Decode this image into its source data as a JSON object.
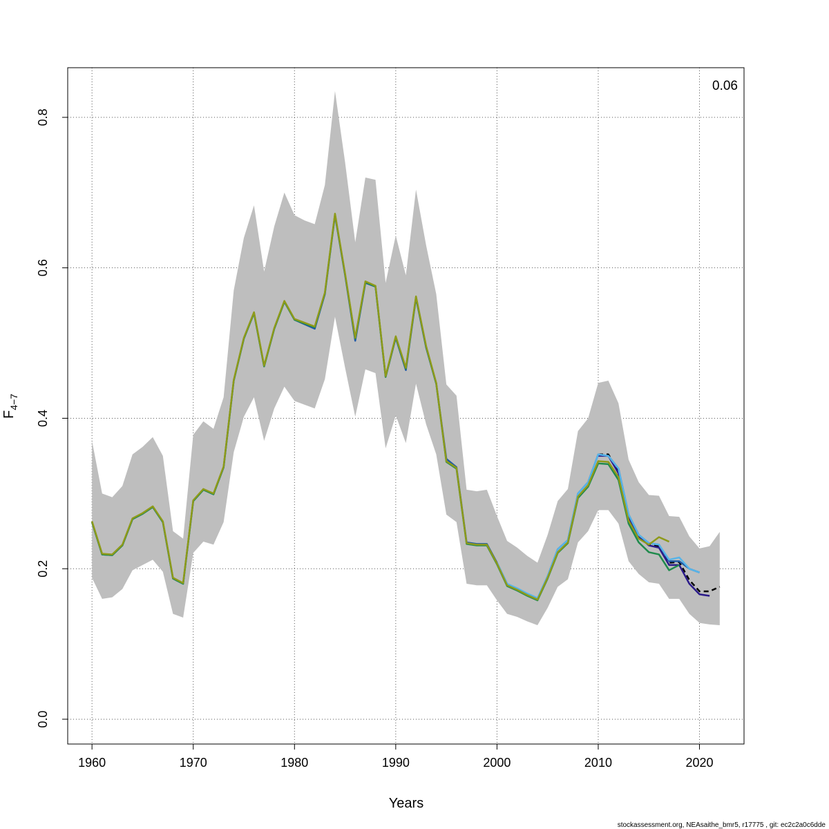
{
  "chart_data": {
    "type": "line",
    "xlabel": "Years",
    "ylabel_main": "F",
    "ylabel_sub": "4−7",
    "annotation": "0.06",
    "footer": "stockassessment.org, NEAsaithe_bmr5, r17775 , git: ec2c2a0c6dde",
    "xlim": [
      1957.6,
      2024.4
    ],
    "ylim": [
      -0.033,
      0.866
    ],
    "x_ticks": [
      1960,
      1970,
      1980,
      1990,
      2000,
      2010,
      2020
    ],
    "y_ticks": [
      0.0,
      0.2,
      0.4,
      0.6,
      0.8
    ],
    "y_tick_labels": [
      "0.0",
      "0.2",
      "0.4",
      "0.6",
      "0.8"
    ],
    "grid": true,
    "band_color": "#bebebe",
    "confidence_band": {
      "x": [
        1960,
        1961,
        1962,
        1963,
        1964,
        1965,
        1966,
        1967,
        1968,
        1969,
        1970,
        1971,
        1972,
        1973,
        1974,
        1975,
        1976,
        1977,
        1978,
        1979,
        1980,
        1981,
        1982,
        1983,
        1984,
        1985,
        1986,
        1987,
        1988,
        1989,
        1990,
        1991,
        1992,
        1993,
        1994,
        1995,
        1996,
        1997,
        1998,
        1999,
        2000,
        2001,
        2002,
        2003,
        2004,
        2005,
        2006,
        2007,
        2008,
        2009,
        2010,
        2011,
        2012,
        2013,
        2014,
        2015,
        2016,
        2017,
        2018,
        2019,
        2020,
        2021,
        2022
      ],
      "upper": [
        0.37,
        0.3,
        0.295,
        0.31,
        0.352,
        0.362,
        0.375,
        0.35,
        0.25,
        0.24,
        0.378,
        0.396,
        0.386,
        0.428,
        0.57,
        0.64,
        0.683,
        0.595,
        0.655,
        0.7,
        0.67,
        0.663,
        0.658,
        0.71,
        0.835,
        0.74,
        0.634,
        0.72,
        0.717,
        0.58,
        0.643,
        0.59,
        0.704,
        0.63,
        0.565,
        0.445,
        0.43,
        0.305,
        0.303,
        0.305,
        0.27,
        0.237,
        0.228,
        0.217,
        0.208,
        0.245,
        0.29,
        0.306,
        0.383,
        0.4,
        0.447,
        0.45,
        0.42,
        0.345,
        0.315,
        0.298,
        0.297,
        0.27,
        0.269,
        0.243,
        0.227,
        0.23,
        0.249
      ],
      "lower": [
        0.188,
        0.16,
        0.162,
        0.173,
        0.198,
        0.205,
        0.212,
        0.196,
        0.14,
        0.135,
        0.221,
        0.236,
        0.232,
        0.262,
        0.355,
        0.402,
        0.428,
        0.37,
        0.413,
        0.442,
        0.423,
        0.418,
        0.413,
        0.452,
        0.535,
        0.467,
        0.402,
        0.465,
        0.46,
        0.36,
        0.404,
        0.367,
        0.446,
        0.392,
        0.352,
        0.272,
        0.262,
        0.18,
        0.178,
        0.178,
        0.158,
        0.14,
        0.136,
        0.13,
        0.125,
        0.148,
        0.176,
        0.186,
        0.235,
        0.25,
        0.278,
        0.278,
        0.26,
        0.21,
        0.193,
        0.182,
        0.18,
        0.16,
        0.16,
        0.14,
        0.128,
        0.126,
        0.125
      ]
    },
    "series": [
      {
        "color": "#000000",
        "dashed": true,
        "width": 2.5,
        "x": [
          2010,
          2011,
          2012,
          2013,
          2014,
          2015,
          2016,
          2017,
          2018,
          2019,
          2020,
          2021,
          2022
        ],
        "values": [
          0.352,
          0.352,
          0.329,
          0.27,
          0.245,
          0.233,
          0.23,
          0.208,
          0.209,
          0.185,
          0.17,
          0.17,
          0.176
        ]
      },
      {
        "color": "#2b1b8a",
        "dashed": false,
        "width": 2.5,
        "x": [
          2010,
          2011,
          2012,
          2013,
          2014,
          2015,
          2016,
          2017,
          2018,
          2019,
          2020,
          2021
        ],
        "values": [
          0.35,
          0.35,
          0.327,
          0.268,
          0.243,
          0.231,
          0.228,
          0.205,
          0.205,
          0.18,
          0.166,
          0.164
        ]
      },
      {
        "color": "#1f5aa6",
        "dashed": false,
        "width": 2.5,
        "x": [
          1960,
          1961,
          1962,
          1963,
          1964,
          1965,
          1966,
          1967,
          1968,
          1969,
          1970,
          1971,
          1972,
          1973,
          1974,
          1975,
          1976,
          1977,
          1978,
          1979,
          1980,
          1981,
          1982,
          1983,
          1984,
          1985,
          1986,
          1987,
          1988,
          1989,
          1990,
          1991,
          1992,
          1993,
          1994,
          1995,
          1996,
          1997,
          1998,
          1999,
          2000,
          2001,
          2002,
          2003,
          2004,
          2005,
          2006,
          2007,
          2008,
          2009,
          2010,
          2011,
          2012,
          2013,
          2014,
          2015,
          2016,
          2017,
          2018,
          2019,
          2020
        ],
        "values": [
          0.262,
          0.219,
          0.218,
          0.231,
          0.266,
          0.273,
          0.282,
          0.262,
          0.187,
          0.18,
          0.29,
          0.305,
          0.299,
          0.335,
          0.45,
          0.506,
          0.54,
          0.469,
          0.519,
          0.555,
          0.531,
          0.525,
          0.519,
          0.565,
          0.67,
          0.59,
          0.503,
          0.58,
          0.575,
          0.455,
          0.507,
          0.464,
          0.56,
          0.494,
          0.446,
          0.346,
          0.335,
          0.235,
          0.233,
          0.233,
          0.208,
          0.18,
          0.173,
          0.166,
          0.16,
          0.19,
          0.226,
          0.238,
          0.3,
          0.315,
          0.352,
          0.35,
          0.333,
          0.272,
          0.245,
          0.234,
          0.232,
          0.21,
          0.21,
          0.2,
          0.195
        ]
      },
      {
        "color": "#56b4e9",
        "dashed": false,
        "width": 2.5,
        "x": [
          2000,
          2001,
          2002,
          2003,
          2004,
          2005,
          2006,
          2007,
          2008,
          2009,
          2010,
          2011,
          2012,
          2013,
          2014,
          2015,
          2016,
          2017,
          2018,
          2019,
          2020
        ],
        "values": [
          0.208,
          0.18,
          0.174,
          0.167,
          0.161,
          0.19,
          0.226,
          0.238,
          0.3,
          0.315,
          0.352,
          0.35,
          0.333,
          0.272,
          0.245,
          0.234,
          0.232,
          0.212,
          0.215,
          0.2,
          0.195
        ]
      },
      {
        "color": "#1f8a4c",
        "dashed": false,
        "width": 2.5,
        "x": [
          1960,
          1961,
          1962,
          1963,
          1964,
          1965,
          1966,
          1967,
          1968,
          1969,
          1970,
          1971,
          1972,
          1973,
          1974,
          1975,
          1976,
          1977,
          1978,
          1979,
          1980,
          1981,
          1982,
          1983,
          1984,
          1985,
          1986,
          1987,
          1988,
          1989,
          1990,
          1991,
          1992,
          1993,
          1994,
          1995,
          1996,
          1997,
          1998,
          1999,
          2000,
          2001,
          2002,
          2003,
          2004,
          2005,
          2006,
          2007,
          2008,
          2009,
          2010,
          2011,
          2012,
          2013,
          2014,
          2015,
          2016,
          2017,
          2018
        ],
        "values": [
          0.262,
          0.219,
          0.218,
          0.231,
          0.266,
          0.273,
          0.282,
          0.262,
          0.187,
          0.18,
          0.29,
          0.305,
          0.299,
          0.335,
          0.45,
          0.506,
          0.54,
          0.469,
          0.519,
          0.555,
          0.531,
          0.526,
          0.521,
          0.566,
          0.671,
          0.591,
          0.506,
          0.581,
          0.575,
          0.455,
          0.508,
          0.466,
          0.561,
          0.495,
          0.446,
          0.342,
          0.333,
          0.233,
          0.231,
          0.231,
          0.206,
          0.177,
          0.171,
          0.164,
          0.158,
          0.187,
          0.221,
          0.234,
          0.294,
          0.309,
          0.34,
          0.339,
          0.318,
          0.26,
          0.235,
          0.222,
          0.219,
          0.198,
          0.205
        ]
      },
      {
        "color": "#8e9a1a",
        "dashed": false,
        "width": 2.5,
        "x": [
          1960,
          1961,
          1962,
          1963,
          1964,
          1965,
          1966,
          1967,
          1968,
          1969,
          1970,
          1971,
          1972,
          1973,
          1974,
          1975,
          1976,
          1977,
          1978,
          1979,
          1980,
          1981,
          1982,
          1983,
          1984,
          1985,
          1986,
          1987,
          1988,
          1989,
          1990,
          1991,
          1992,
          1993,
          1994,
          1995,
          1996,
          1997,
          1998,
          1999,
          2000,
          2001,
          2002,
          2003,
          2004,
          2005,
          2006,
          2007,
          2008,
          2009,
          2010,
          2011,
          2012,
          2013,
          2014,
          2015,
          2016,
          2017
        ],
        "values": [
          0.263,
          0.22,
          0.219,
          0.232,
          0.267,
          0.274,
          0.283,
          0.263,
          0.188,
          0.181,
          0.291,
          0.306,
          0.3,
          0.336,
          0.451,
          0.507,
          0.541,
          0.47,
          0.52,
          0.556,
          0.532,
          0.527,
          0.522,
          0.567,
          0.672,
          0.592,
          0.507,
          0.582,
          0.576,
          0.456,
          0.509,
          0.467,
          0.562,
          0.496,
          0.447,
          0.343,
          0.334,
          0.234,
          0.232,
          0.232,
          0.207,
          0.178,
          0.172,
          0.165,
          0.159,
          0.188,
          0.222,
          0.235,
          0.296,
          0.311,
          0.343,
          0.342,
          0.322,
          0.264,
          0.24,
          0.232,
          0.242,
          0.236
        ]
      }
    ]
  }
}
